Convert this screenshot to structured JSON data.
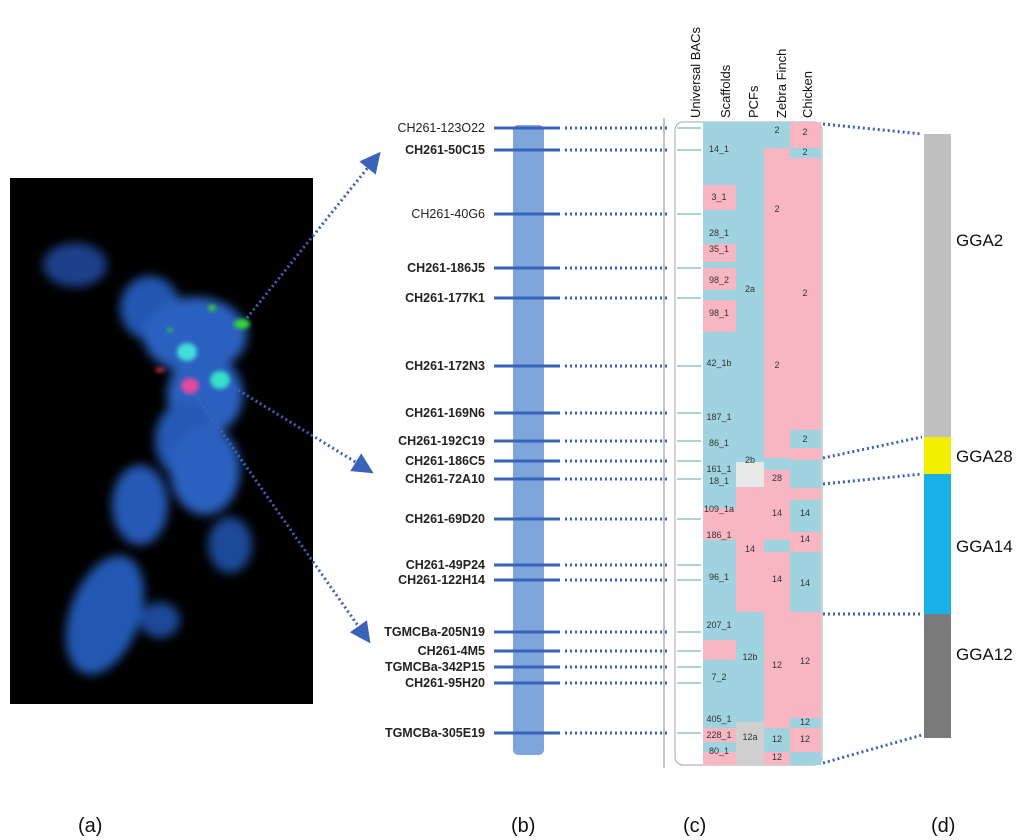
{
  "panel_labels": [
    "(a)",
    "(b)",
    "(c)",
    "(d)"
  ],
  "bacs": [
    {
      "label": "CH261-123O22",
      "color": "#222222",
      "bold": false
    },
    {
      "label": "CH261-50C15",
      "color": "#1aa34a",
      "bold": true
    },
    {
      "label": "CH261-40G6",
      "color": "#222222",
      "bold": false
    },
    {
      "label": "CH261-186J5",
      "color": "#222222",
      "bold": true
    },
    {
      "label": "CH261-177K1",
      "color": "#222222",
      "bold": true
    },
    {
      "label": "CH261-172N3",
      "color": "#222222",
      "bold": true
    },
    {
      "label": "CH261-169N6",
      "color": "#222222",
      "bold": true
    },
    {
      "label": "CH261-192C19",
      "color": "#222222",
      "bold": true
    },
    {
      "label": "CH261-186C5",
      "color": "#222222",
      "bold": true
    },
    {
      "label": "CH261-72A10",
      "color": "#1aa34a",
      "bold": true
    },
    {
      "label": "CH261-69D20",
      "color": "#222222",
      "bold": true
    },
    {
      "label": "CH261-49P24",
      "color": "#222222",
      "bold": true
    },
    {
      "label": "CH261-122H14",
      "color": "#222222",
      "bold": true
    },
    {
      "label": "TGMCBa-205N19",
      "color": "#222222",
      "bold": true
    },
    {
      "label": "CH261-4M5",
      "color": "#e02020",
      "bold": true
    },
    {
      "label": "TGMCBa-342P15",
      "color": "#222222",
      "bold": true
    },
    {
      "label": "CH261-95H20",
      "color": "#222222",
      "bold": true
    },
    {
      "label": "TGMCBa-305E19",
      "color": "#222222",
      "bold": true
    }
  ],
  "column_headers": [
    "Universal BACs",
    "Scaffolds",
    "PCFs",
    "Zebra Finch",
    "Chicken"
  ],
  "scaffold_labels": [
    "14_1",
    "3_1",
    "28_1",
    "35_1",
    "98_2",
    "98_1",
    "42_1b",
    "187_1",
    "86_1",
    "161_1",
    "18_1",
    "109_1a",
    "186_1",
    "96_1",
    "207_1",
    "7_2",
    "405_1",
    "228_1",
    "80_1"
  ],
  "pcf_labels": [
    "2a",
    "2b",
    "12b",
    "12a",
    "14"
  ],
  "zebra_finch_labels": [
    "2",
    "2",
    "2",
    "28",
    "14",
    "14",
    "12",
    "12",
    "12"
  ],
  "chicken_labels": [
    "2",
    "2",
    "2",
    "2",
    "14",
    "14",
    "14",
    "12",
    "12",
    "12"
  ],
  "gga": [
    {
      "label": "GGA2",
      "color": "#c0c0c0"
    },
    {
      "label": "GGA28",
      "color": "#f2ef00"
    },
    {
      "label": "GGA14",
      "color": "#18b0e6"
    },
    {
      "label": "GGA12",
      "color": "#7a7a7a"
    }
  ],
  "colors": {
    "scaffold_blue": "#9fd3df",
    "scaffold_pink": "#f7b6c2",
    "chromosome": "#7fa6dc",
    "connector": "#3a62b8",
    "fish_background": "#000000"
  }
}
